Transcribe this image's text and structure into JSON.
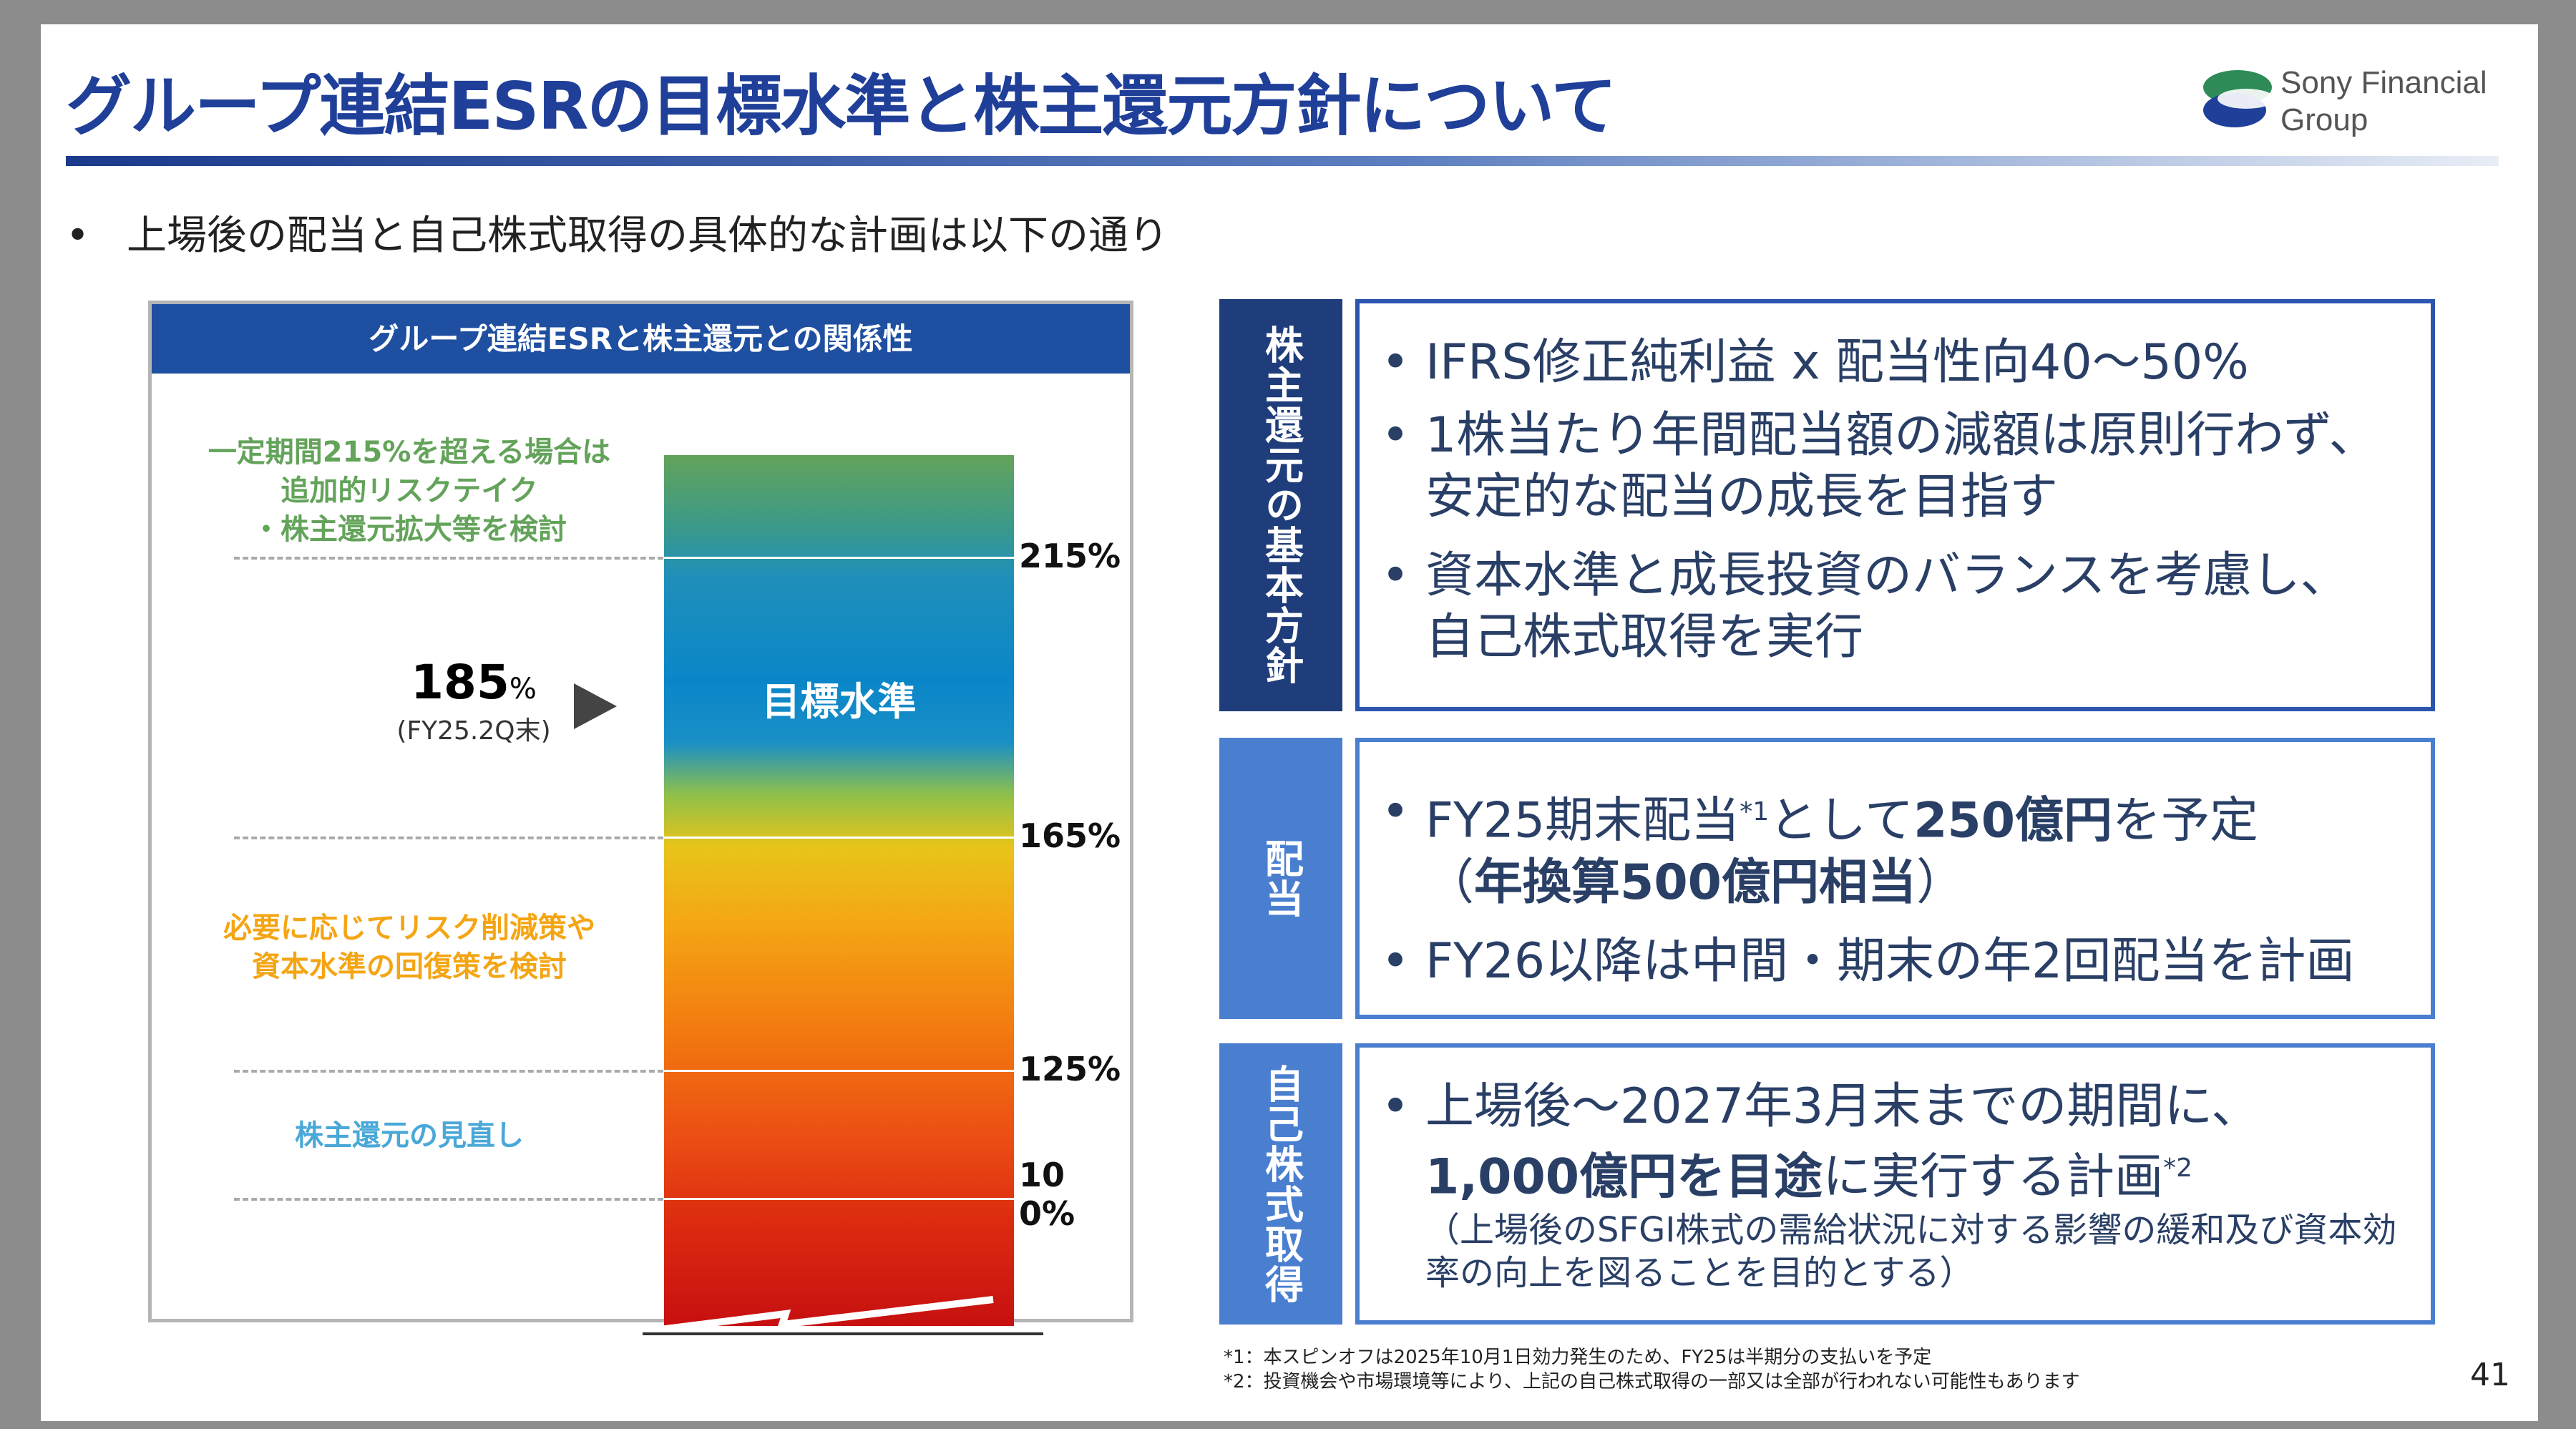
{
  "title": "グループ連結ESRの目標水準と株主還元方針について",
  "logo": {
    "line1": "Sony Financial",
    "line2": "Group"
  },
  "bullet": "上場後の配当と自己株式取得の具体的な計画は以下の通り",
  "left_panel": {
    "header": "グループ連結ESRと株主還元との関係性",
    "band_label": "目標水準",
    "levels": [
      "215%",
      "165%",
      "125%",
      "100%"
    ],
    "current": {
      "value": "185",
      "unit": "%",
      "note": "(FY25.2Q末)"
    },
    "zone_top": [
      "一定期間215%を超える場合は",
      "追加的リスクテイク",
      "・株主還元拡大等を検討"
    ],
    "zone_mid": [
      "必要に応じてリスク削減策や",
      "資本水準の回復策を検討"
    ],
    "zone_low": "株主還元の見直し",
    "colors": {
      "top": "#63a35a",
      "mid": "#f4a514",
      "low": "#4aa8d8"
    }
  },
  "sections": [
    {
      "tab": "株主還元の基本方針",
      "lines": [
        "IFRS修正純利益 x 配当性向40～50%",
        "1株当たり年間配当額の減額は原則行わず、",
        "安定的な配当の成長を目指す",
        "資本水準と成長投資のバランスを考慮し、",
        "自己株式取得を実行"
      ]
    },
    {
      "tab": "配当",
      "l1a": "FY25期末配当",
      "l1sup": "*1",
      "l1b": "として",
      "l1c": "250億円",
      "l1d": "を予定",
      "l2": "（",
      "l2b": "年換算500億円相当",
      "l2c": "）",
      "l3": "FY26以降は中間・期末の年2回配当を計画"
    },
    {
      "tab": "自己株式取得",
      "l1": "上場後～2027年3月末までの期間に、",
      "l2a": "1,000億円を目途",
      "l2b": "に実行する計画",
      "l2sup": "*2",
      "l3": "（上場後のSFGI株式の需給状況に対する影響の緩和及び資本効",
      "l4": "率の向上を図ることを目的とする）"
    }
  ],
  "footnotes": [
    "*1：本スピンオフは2025年10月1日効力発生のため、FY25は半期分の支払いを予定",
    "*2：投資機会や市場環境等により、上記の自己株式取得の一部又は全部が行われない可能性もあります"
  ],
  "page_number": "41"
}
